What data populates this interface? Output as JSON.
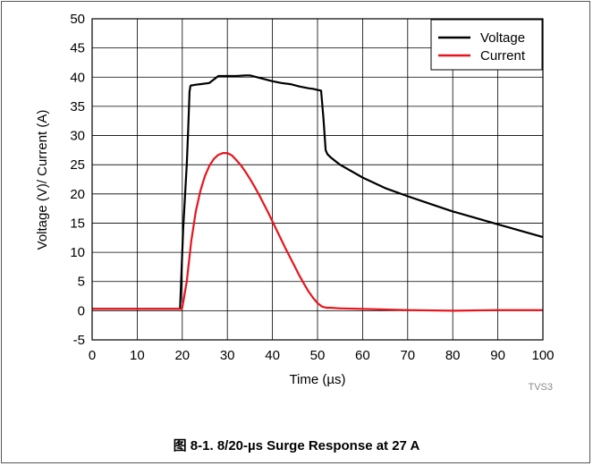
{
  "colors": {
    "voltage": "#000000",
    "current": "#e8141e",
    "grid": "#000000",
    "axes": "#000000",
    "code": "#8a8a8a"
  },
  "figure": {
    "caption": "图 8-1. 8/20-µs Surge Response at 27 A",
    "code": "TVS3"
  },
  "chart_data": {
    "type": "line",
    "title": "",
    "xlabel": "Time (µs)",
    "ylabel": "Voltage (V)/ Current (A)",
    "xlim": [
      0,
      100
    ],
    "ylim": [
      -5,
      50
    ],
    "xticks": [
      0,
      10,
      20,
      30,
      40,
      50,
      60,
      70,
      80,
      90,
      100
    ],
    "yticks": [
      -5,
      0,
      5,
      10,
      15,
      20,
      25,
      30,
      35,
      40,
      45,
      50
    ],
    "grid": true,
    "legend_position": "top-right",
    "series": [
      {
        "name": "Voltage",
        "color": "#000000",
        "x": [
          0,
          19.5,
          20.2,
          21,
          21.3,
          21.6,
          21.8,
          22,
          22.3,
          22.8,
          24,
          26,
          27,
          28,
          30,
          32,
          34,
          35,
          36,
          38,
          40,
          42,
          44,
          46,
          48,
          49,
          50,
          50.8,
          51.3,
          51.8,
          52.2,
          53,
          55,
          60,
          65,
          70,
          75,
          80,
          85,
          90,
          95,
          100
        ],
        "y": [
          0.3,
          0.3,
          14.0,
          25.0,
          31.0,
          37.5,
          38.5,
          38.6,
          38.6,
          38.7,
          38.8,
          39.0,
          39.6,
          40.2,
          40.2,
          40.2,
          40.3,
          40.3,
          40.1,
          39.7,
          39.3,
          39.0,
          38.8,
          38.4,
          38.1,
          38.0,
          37.8,
          37.7,
          33.0,
          27.5,
          26.8,
          26.2,
          25.0,
          22.8,
          21.0,
          19.6,
          18.3,
          17.0,
          15.9,
          14.8,
          13.7,
          12.6
        ]
      },
      {
        "name": "Current",
        "color": "#e8141e",
        "x": [
          0,
          10,
          19.8,
          20,
          21,
          22,
          23,
          24,
          25,
          26,
          27,
          28,
          29,
          30,
          31,
          32,
          33,
          34,
          35,
          36,
          37,
          38,
          39,
          40,
          41,
          42,
          43,
          44,
          45,
          46,
          47,
          48,
          49,
          50,
          51,
          52,
          53,
          55,
          60,
          70,
          80,
          90,
          100
        ],
        "y": [
          0.3,
          0.3,
          0.3,
          0.5,
          5.0,
          12.0,
          17.0,
          20.5,
          23.0,
          24.8,
          26.0,
          26.7,
          27.0,
          27.0,
          26.6,
          25.8,
          24.9,
          23.8,
          22.6,
          21.3,
          19.9,
          18.4,
          16.9,
          15.3,
          13.7,
          12.1,
          10.5,
          9.0,
          7.5,
          6.0,
          4.6,
          3.3,
          2.2,
          1.3,
          0.7,
          0.5,
          0.5,
          0.4,
          0.3,
          0.1,
          0.0,
          0.1,
          0.1
        ]
      }
    ]
  }
}
